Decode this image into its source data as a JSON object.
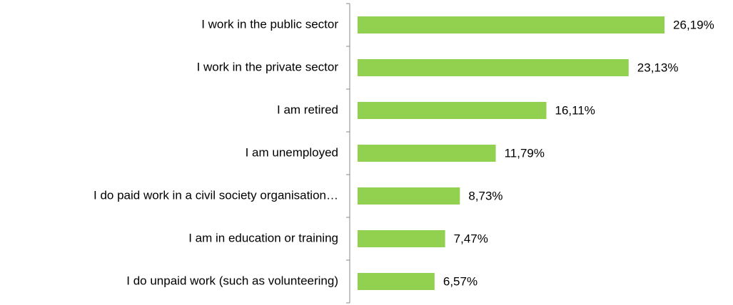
{
  "chart_data": {
    "type": "bar",
    "orientation": "horizontal",
    "categories": [
      "I work in the public sector",
      "I work in the private sector",
      "I am retired",
      "I am unemployed",
      "I do paid work in a civil society organisation…",
      "I am in education or training",
      "I do unpaid work (such as volunteering)"
    ],
    "values": [
      26.19,
      23.13,
      16.11,
      11.79,
      8.73,
      7.47,
      6.57
    ],
    "value_labels": [
      "26,19%",
      "23,13%",
      "16,11%",
      "11,79%",
      "8,73%",
      "7,47%",
      "6,57%"
    ],
    "color": "#92d050"
  }
}
